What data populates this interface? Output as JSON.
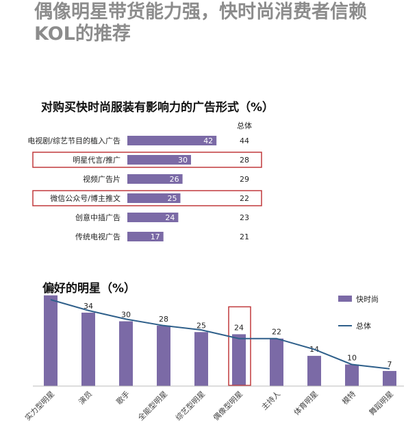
{
  "page": {
    "title_line1": "偶像明星带货能力强，快时尚消费者信赖",
    "title_line2": "KOL的推荐",
    "bar_color": "#7b6aa6",
    "line_color": "#2e5f8a",
    "highlight_color": "#c0393b"
  },
  "chart_data": [
    {
      "type": "bar",
      "orientation": "horizontal",
      "title": "对购买快时尚服装有影响力的广告形式（%）",
      "categories": [
        "电视剧/综艺节目的植入广告",
        "明星代言/推广",
        "视频广告片",
        "微信公众号/博主推文",
        "创意中插广告",
        "传统电视广告"
      ],
      "series": [
        {
          "name": "",
          "values": [
            42,
            30,
            26,
            25,
            24,
            17
          ]
        }
      ],
      "overall_label": "总体",
      "overall_values": [
        44,
        28,
        29,
        22,
        23,
        21
      ],
      "highlighted": [
        "明星代言/推广",
        "微信公众号/博主推文"
      ],
      "xlim": [
        0,
        60
      ],
      "grid": false
    },
    {
      "type": "bar",
      "title": "偏好的明星（%）",
      "categories": [
        "实力型明星",
        "演员",
        "歌手",
        "全能型明星",
        "综艺型明星",
        "偶像型明星",
        "主持人",
        "体育明星",
        "模特",
        "舞蹈明星"
      ],
      "series": [
        {
          "name": "快时尚",
          "type": "bar",
          "values": [
            42,
            34,
            30,
            28,
            25,
            24,
            22,
            14,
            10,
            7
          ]
        },
        {
          "name": "总体",
          "type": "line",
          "values": [
            40,
            35,
            31,
            28,
            26,
            22,
            22,
            17,
            10,
            8
          ]
        }
      ],
      "highlighted": [
        "偶像型明星"
      ],
      "legend": "top-right",
      "ylim": [
        0,
        50
      ],
      "grid": false
    }
  ]
}
